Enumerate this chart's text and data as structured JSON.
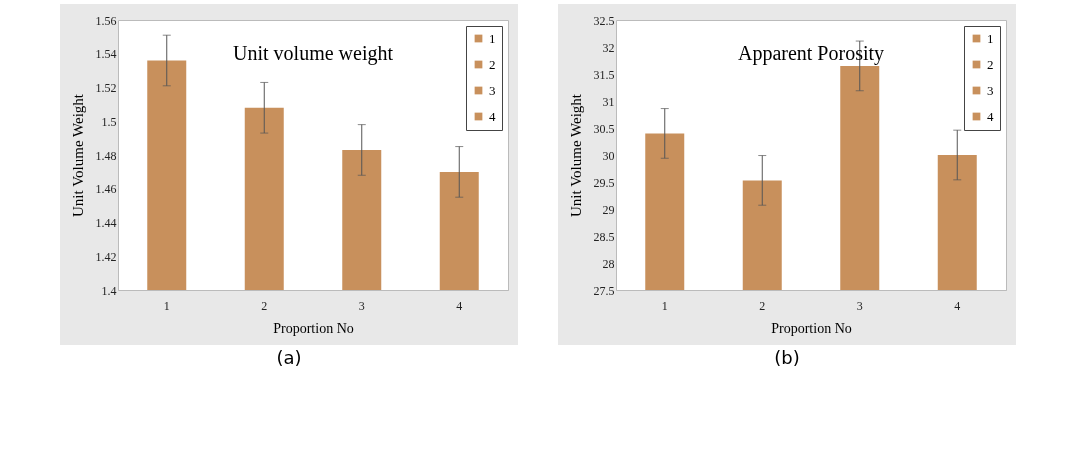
{
  "chart_data": [
    {
      "type": "bar",
      "title": "Unit volume weight",
      "xlabel": "Proportion No",
      "ylabel": "Unit Volume Weight",
      "categories": [
        "1",
        "2",
        "3",
        "4"
      ],
      "series": [
        {
          "name": "1",
          "color": "#c8905c",
          "values": [
            1.536,
            null,
            null,
            null
          ],
          "errors": [
            0.015,
            null,
            null,
            null
          ]
        },
        {
          "name": "2",
          "color": "#c8905c",
          "values": [
            null,
            1.508,
            null,
            null
          ],
          "errors": [
            null,
            0.015,
            null,
            null
          ]
        },
        {
          "name": "3",
          "color": "#c8905c",
          "values": [
            null,
            null,
            1.483,
            null
          ],
          "errors": [
            null,
            null,
            0.015,
            null
          ]
        },
        {
          "name": "4",
          "color": "#c8905c",
          "values": [
            null,
            null,
            null,
            1.47
          ],
          "errors": [
            null,
            null,
            null,
            0.015
          ]
        }
      ],
      "ylim": [
        1.4,
        1.56
      ],
      "yticks": [
        1.4,
        1.42,
        1.44,
        1.46,
        1.48,
        1.5,
        1.52,
        1.54,
        1.56
      ],
      "grid": false,
      "legend": "top right",
      "annotations": [
        "(a)"
      ]
    },
    {
      "type": "bar",
      "title": "Apparent Porosity",
      "xlabel": "Proportion No",
      "ylabel": "Unit Volume Weight",
      "categories": [
        "1",
        "2",
        "3",
        "4"
      ],
      "series": [
        {
          "name": "1",
          "color": "#c8905c",
          "values": [
            30.4,
            null,
            null,
            null
          ],
          "errors": [
            0.46,
            null,
            null,
            null
          ]
        },
        {
          "name": "2",
          "color": "#c8905c",
          "values": [
            null,
            29.53,
            null,
            null
          ],
          "errors": [
            null,
            0.46,
            null,
            null
          ]
        },
        {
          "name": "3",
          "color": "#c8905c",
          "values": [
            null,
            null,
            31.65,
            null
          ],
          "errors": [
            null,
            null,
            0.46,
            null
          ]
        },
        {
          "name": "4",
          "color": "#c8905c",
          "values": [
            null,
            null,
            null,
            30.0
          ],
          "errors": [
            null,
            null,
            null,
            0.46
          ]
        }
      ],
      "ylim": [
        27.5,
        32.5
      ],
      "yticks": [
        27.5,
        28,
        28.5,
        29,
        29.5,
        30,
        30.5,
        31,
        31.5,
        32,
        32.5
      ],
      "grid": false,
      "legend": "top right",
      "annotations": [
        "(b)"
      ]
    }
  ]
}
